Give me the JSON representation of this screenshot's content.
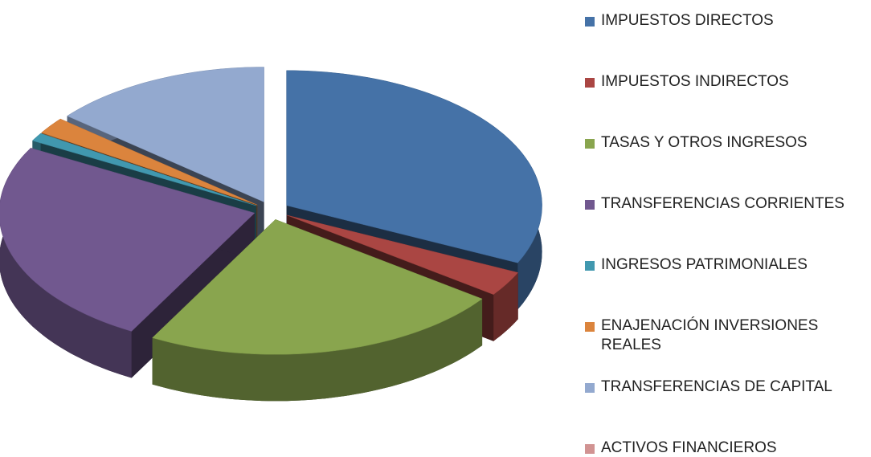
{
  "chart_data": {
    "type": "pie",
    "categories": [
      "IMPUESTOS DIRECTOS",
      "IMPUESTOS INDIRECTOS",
      "TASAS Y OTROS INGRESOS",
      "TRANSFERENCIAS CORRIENTES",
      "INGRESOS PATRIMONIALES",
      "ENAJENACIÓN INVERSIONES REALES",
      "TRANSFERENCIAS DE CAPITAL",
      "ACTIVOS FINANCIEROS"
    ],
    "values": [
      32,
      3,
      23,
      25,
      1,
      2,
      14,
      0
    ],
    "colors": [
      "#4572a7",
      "#aa4643",
      "#89a54e",
      "#71588f",
      "#4198af",
      "#db843d",
      "#93a9cf",
      "#d19392"
    ],
    "legend": "right"
  }
}
